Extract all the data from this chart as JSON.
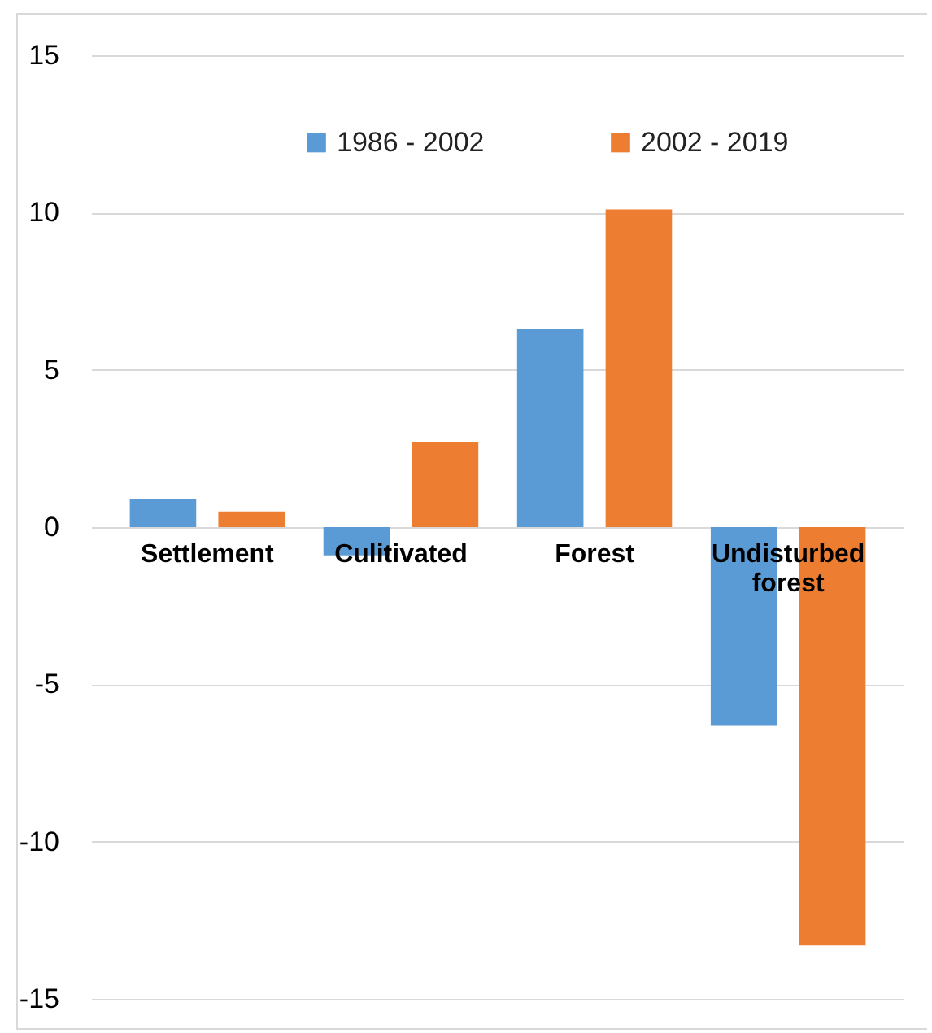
{
  "chart_data": {
    "type": "bar",
    "categories": [
      "Settlement",
      "Culitivated",
      "Forest",
      "Undisturbed forest"
    ],
    "series": [
      {
        "name": "1986 - 2002",
        "color": "#5b9bd5",
        "values": [
          0.9,
          -0.9,
          6.3,
          -6.3
        ]
      },
      {
        "name": "2002 - 2019",
        "color": "#ed7d31",
        "values": [
          0.5,
          2.7,
          10.1,
          -13.3
        ]
      }
    ],
    "ylim": [
      -15,
      15
    ],
    "yticks": [
      -15,
      -10,
      -5,
      0,
      5,
      10,
      15
    ],
    "grid": "y",
    "legend": "top"
  }
}
